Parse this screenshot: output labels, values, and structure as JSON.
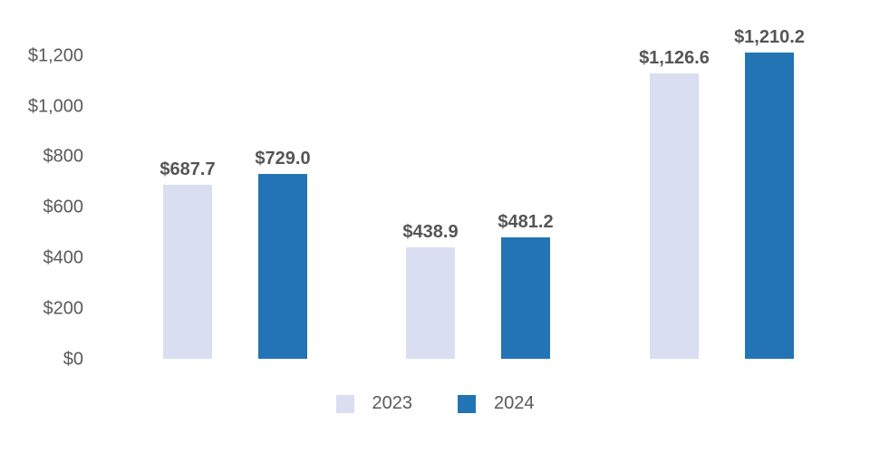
{
  "chart_data": {
    "type": "bar",
    "title": "",
    "categories": [
      "",
      "",
      ""
    ],
    "series": [
      {
        "name": "2023",
        "color": "#D9DEF1",
        "values": [
          687.7,
          438.9,
          1126.6
        ],
        "value_labels": [
          "$687.7",
          "$438.9",
          "$1,126.6"
        ]
      },
      {
        "name": "2024",
        "color": "#2274B5",
        "values": [
          729.0,
          481.2,
          1210.2
        ],
        "value_labels": [
          "$729.0",
          "$481.2",
          "$1,210.2"
        ]
      }
    ],
    "y_ticks": [
      "$0",
      "$200",
      "$400",
      "$600",
      "$800",
      "$1,000",
      "$1,200"
    ],
    "ylim": [
      0,
      1200
    ],
    "grid": false,
    "axis_lines": false,
    "legend_position": "bottom-center",
    "tick_label_color": "#595959",
    "value_label_color": "#555555"
  }
}
